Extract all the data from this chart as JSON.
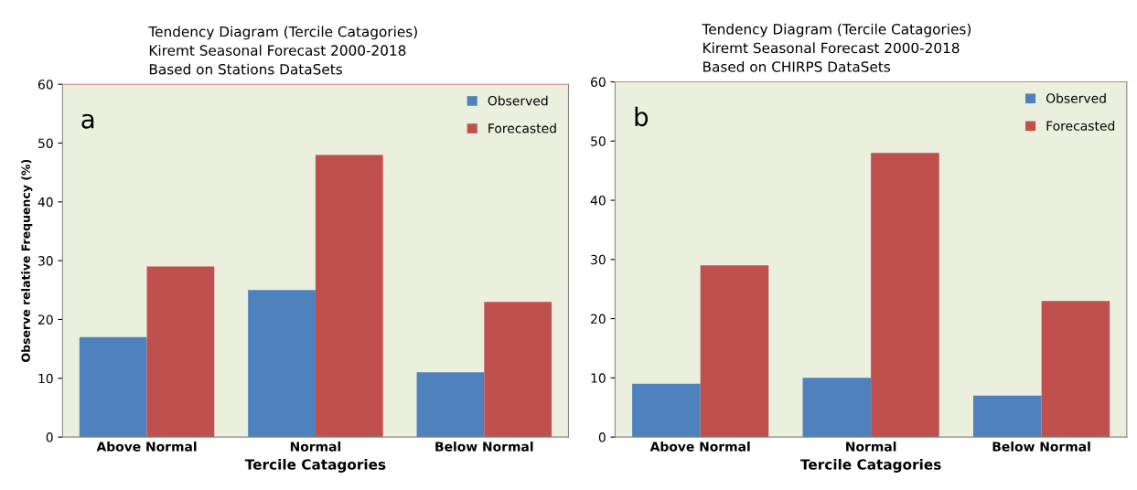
{
  "chart_data": [
    {
      "type": "bar",
      "title": "Tendency Diagram (Tercile Catagories)\nKiremt Seasonal Forecast 2000-2018\nBased on Stations DataSets",
      "xlabel": "Tercile Catagories",
      "ylabel": "Observe relative Frequency (%)",
      "annotations": [
        "a"
      ],
      "categories": [
        "Above Normal",
        "Normal",
        "Below Normal"
      ],
      "series": [
        {
          "name": "Observed",
          "color": "#4f81bd",
          "values": [
            17,
            25,
            11
          ]
        },
        {
          "name": "Forecasted",
          "color": "#c0504d",
          "values": [
            29,
            48,
            23
          ]
        }
      ],
      "ylim": [
        0,
        60
      ],
      "yticks": [
        0,
        10,
        20,
        30,
        40,
        50,
        60
      ],
      "legend": "top right",
      "grid": false
    },
    {
      "type": "bar",
      "title": "Tendency Diagram (Tercile Catagories)\nKiremt Seasonal Forecast 2000-2018\nBased on CHIRPS DataSets",
      "xlabel": "Tercile Catagories",
      "annotations": [
        "b"
      ],
      "categories": [
        "Above Normal",
        "Normal",
        "Below Normal"
      ],
      "series": [
        {
          "name": "Observed",
          "color": "#4f81bd",
          "values": [
            9,
            10,
            7
          ]
        },
        {
          "name": "Forecasted",
          "color": "#c0504d",
          "values": [
            29,
            48,
            23
          ]
        }
      ],
      "ylim": [
        0,
        60
      ],
      "yticks": [
        0,
        10,
        20,
        30,
        40,
        50,
        60
      ],
      "legend": "top right",
      "grid": false
    }
  ]
}
